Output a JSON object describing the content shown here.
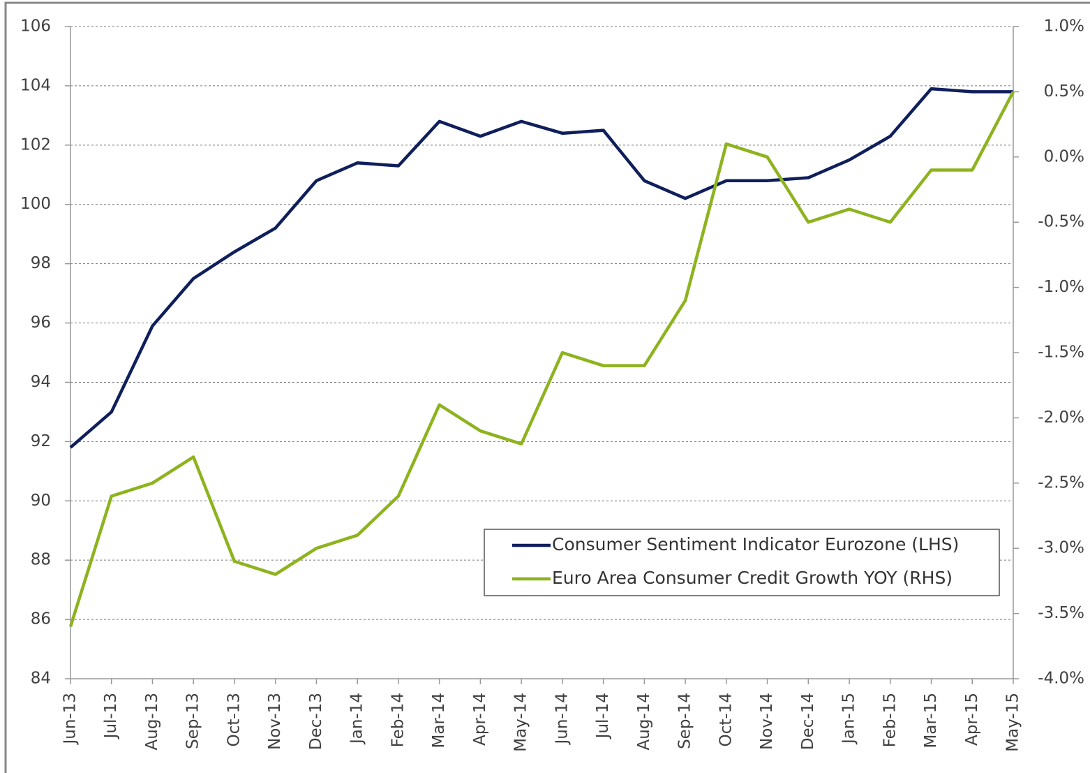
{
  "chart_data": {
    "type": "line",
    "categories": [
      "Jun-13",
      "Jul-13",
      "Aug-13",
      "Sep-13",
      "Oct-13",
      "Nov-13",
      "Dec-13",
      "Jan-14",
      "Feb-14",
      "Mar-14",
      "Apr-14",
      "May-14",
      "Jun-14",
      "Jul-14",
      "Aug-14",
      "Sep-14",
      "Oct-14",
      "Nov-14",
      "Dec-14",
      "Jan-15",
      "Feb-15",
      "Mar-15",
      "Apr-15",
      "May-15"
    ],
    "series": [
      {
        "name": "Consumer Sentiment Indicator Eurozone (LHS)",
        "color": "#0f1f5c",
        "values": [
          91.8,
          93.0,
          95.9,
          97.5,
          98.4,
          99.2,
          100.8,
          101.4,
          101.3,
          102.8,
          102.3,
          102.8,
          102.4,
          102.5,
          100.8,
          100.2,
          100.8,
          100.8,
          100.9,
          101.5,
          102.3,
          103.9,
          103.8,
          103.8
        ]
      },
      {
        "name": "Euro Area Consumer Credit Growth YOY (RHS)",
        "color": "#8db31e",
        "axis": "y2",
        "values": [
          -3.6,
          -2.6,
          -2.5,
          -2.3,
          -3.1,
          -3.2,
          -3.0,
          -2.9,
          -2.6,
          -1.9,
          -2.1,
          -2.2,
          -1.5,
          -1.6,
          -1.6,
          -1.1,
          0.1,
          0.0,
          -0.5,
          -0.4,
          -0.5,
          -0.1,
          -0.1,
          0.5
        ]
      }
    ],
    "ylim": [
      84,
      106
    ],
    "yticks": [
      84,
      86,
      88,
      90,
      92,
      94,
      96,
      98,
      100,
      102,
      104,
      106
    ],
    "y2lim": [
      -4.0,
      1.0
    ],
    "y2ticks": [
      {
        "value": -4.0,
        "label": "-4.0%"
      },
      {
        "value": -3.5,
        "label": "-3.5%"
      },
      {
        "value": -3.0,
        "label": "-3.0%"
      },
      {
        "value": -2.5,
        "label": "-2.5%"
      },
      {
        "value": -2.0,
        "label": "-2.0%"
      },
      {
        "value": -1.5,
        "label": "-1.5%"
      },
      {
        "value": -1.0,
        "label": "-1.0%"
      },
      {
        "value": -0.5,
        "label": "-0.5%"
      },
      {
        "value": 0.0,
        "label": "0.0%"
      },
      {
        "value": 0.5,
        "label": "0.5%"
      },
      {
        "value": 1.0,
        "label": "1.0%"
      }
    ],
    "grid": true,
    "legend": "lower right"
  }
}
